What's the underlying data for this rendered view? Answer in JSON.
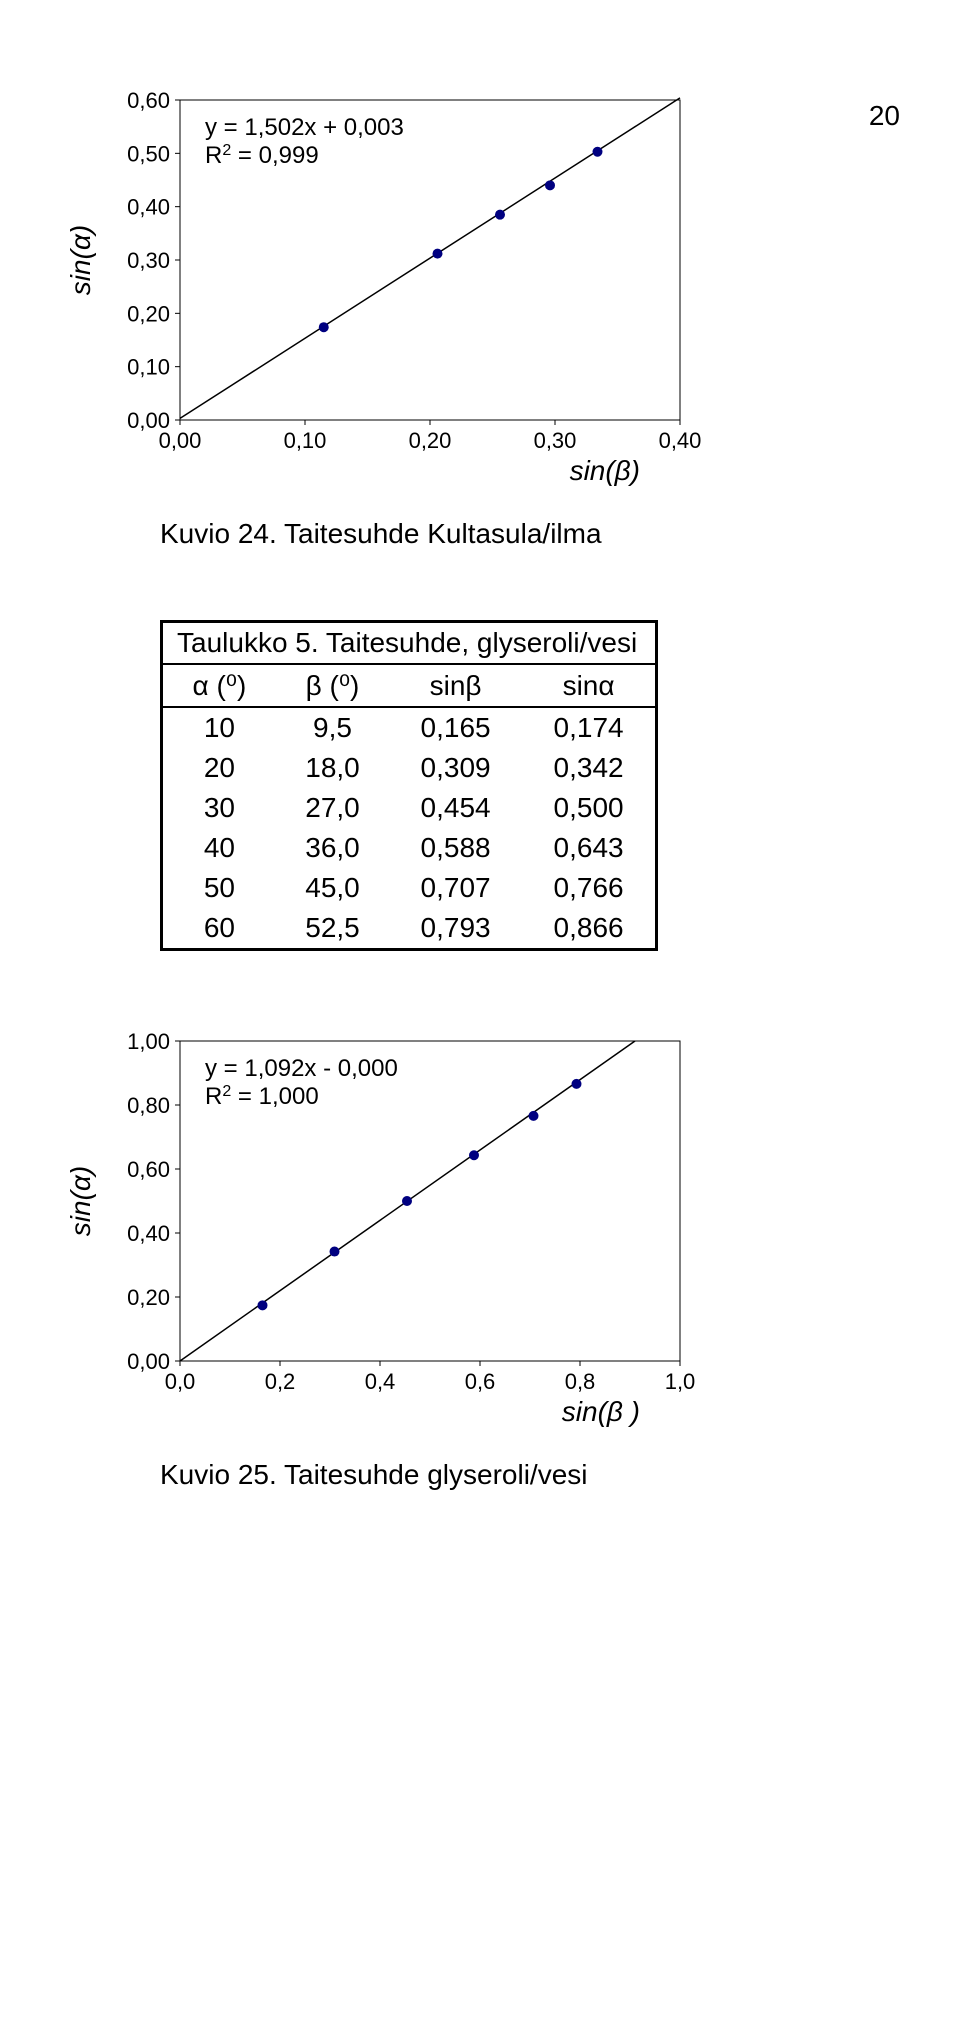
{
  "page_number": "20",
  "chart1": {
    "type": "scatter-with-fit",
    "equation_line1": "y = 1,502x + 0,003",
    "equation_line2_pre": "R",
    "equation_line2_sup": "2",
    "equation_line2_post": " = 0,999",
    "ylabel": "sin(α)",
    "xlabel": "sin(β)",
    "xticks": [
      "0,00",
      "0,10",
      "0,20",
      "0,30",
      "0,40"
    ],
    "yticks": [
      "0,00",
      "0,10",
      "0,20",
      "0,30",
      "0,40",
      "0,50",
      "0,60"
    ],
    "xlim": [
      0.0,
      0.4
    ],
    "ylim": [
      0.0,
      0.6
    ],
    "tick_size": 5,
    "axis_color": "#000000",
    "grid_color": "#000000",
    "marker_color": "#000080",
    "marker_radius": 5,
    "line_color": "#000000",
    "background": "#ffffff",
    "points": [
      [
        0.115,
        0.174
      ],
      [
        0.206,
        0.312
      ],
      [
        0.256,
        0.385
      ],
      [
        0.296,
        0.44
      ],
      [
        0.334,
        0.503
      ]
    ],
    "fit_line": {
      "x0": 0.0,
      "y0": 0.003,
      "x1": 0.4,
      "y1": 0.604
    }
  },
  "caption1": "Kuvio 24. Taitesuhde Kultasula/ilma",
  "table": {
    "title": "Taulukko 5. Taitesuhde, glyseroli/vesi",
    "headers": [
      "α (⁰)",
      "β (⁰)",
      "sinβ",
      "sinα"
    ],
    "rows": [
      [
        "10",
        "9,5",
        "0,165",
        "0,174"
      ],
      [
        "20",
        "18,0",
        "0,309",
        "0,342"
      ],
      [
        "30",
        "27,0",
        "0,454",
        "0,500"
      ],
      [
        "40",
        "36,0",
        "0,588",
        "0,643"
      ],
      [
        "50",
        "45,0",
        "0,707",
        "0,766"
      ],
      [
        "60",
        "52,5",
        "0,793",
        "0,866"
      ]
    ]
  },
  "chart2": {
    "type": "scatter-with-fit",
    "equation_line1": "y = 1,092x - 0,000",
    "equation_line2_pre": "R",
    "equation_line2_sup": "2",
    "equation_line2_post": " = 1,000",
    "ylabel": "sin(α)",
    "xlabel": "sin(β )",
    "xticks": [
      "0,0",
      "0,2",
      "0,4",
      "0,6",
      "0,8",
      "1,0"
    ],
    "yticks": [
      "0,00",
      "0,20",
      "0,40",
      "0,60",
      "0,80",
      "1,00"
    ],
    "xlim": [
      0.0,
      1.0
    ],
    "ylim": [
      0.0,
      1.0
    ],
    "tick_size": 5,
    "axis_color": "#000000",
    "marker_color": "#000080",
    "marker_radius": 5,
    "line_color": "#000000",
    "background": "#ffffff",
    "points": [
      [
        0.165,
        0.174
      ],
      [
        0.309,
        0.342
      ],
      [
        0.454,
        0.5
      ],
      [
        0.588,
        0.643
      ],
      [
        0.707,
        0.766
      ],
      [
        0.793,
        0.866
      ]
    ],
    "fit_line": {
      "x0": 0.0,
      "y0": 0.0,
      "x1": 0.91,
      "y1": 1.0
    }
  },
  "caption2": "Kuvio 25. Taitesuhde glyseroli/vesi"
}
